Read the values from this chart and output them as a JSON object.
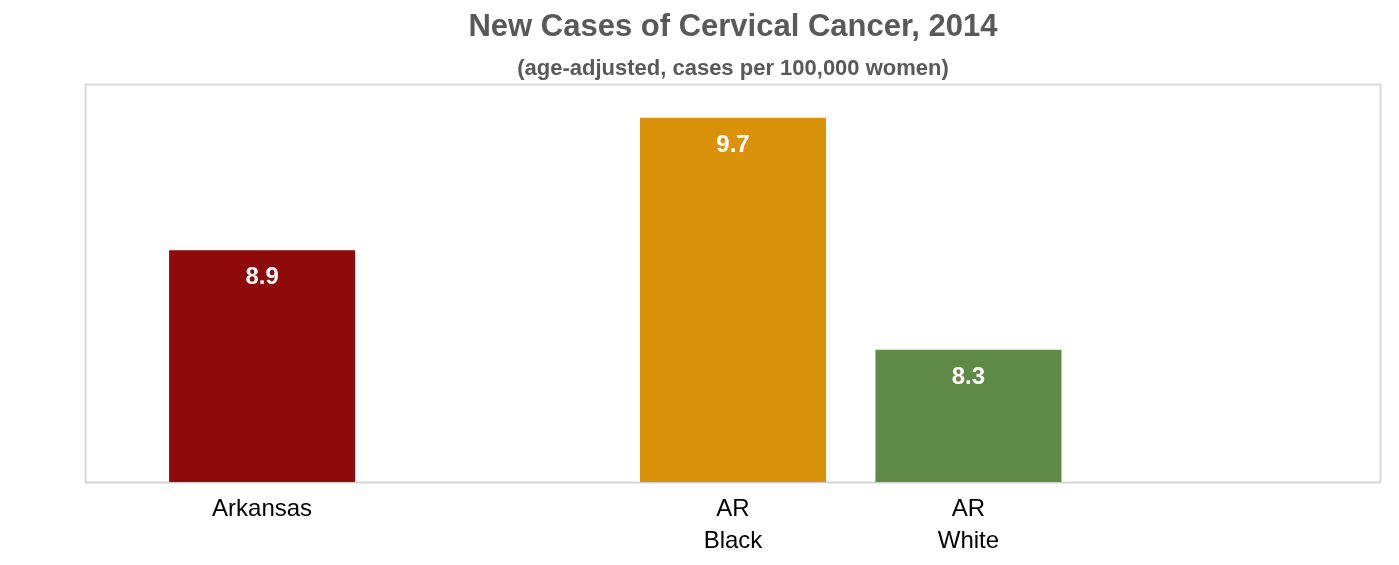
{
  "chart_data": {
    "type": "bar",
    "title": "New Cases of Cervical Cancer, 2014",
    "subtitle": "(age-adjusted, cases per 100,000 women)",
    "categories": [
      "Arkansas",
      null,
      "AR\nBlack",
      "AR\nWhite",
      null
    ],
    "values": [
      8.9,
      null,
      9.7,
      8.3,
      null
    ],
    "colors": [
      "#8f0a0a",
      "#888888",
      "#d9920a",
      "#5f8a45",
      "#888888"
    ],
    "ylim": [
      7.5,
      9.9
    ],
    "data_labels": true,
    "grid": false
  }
}
